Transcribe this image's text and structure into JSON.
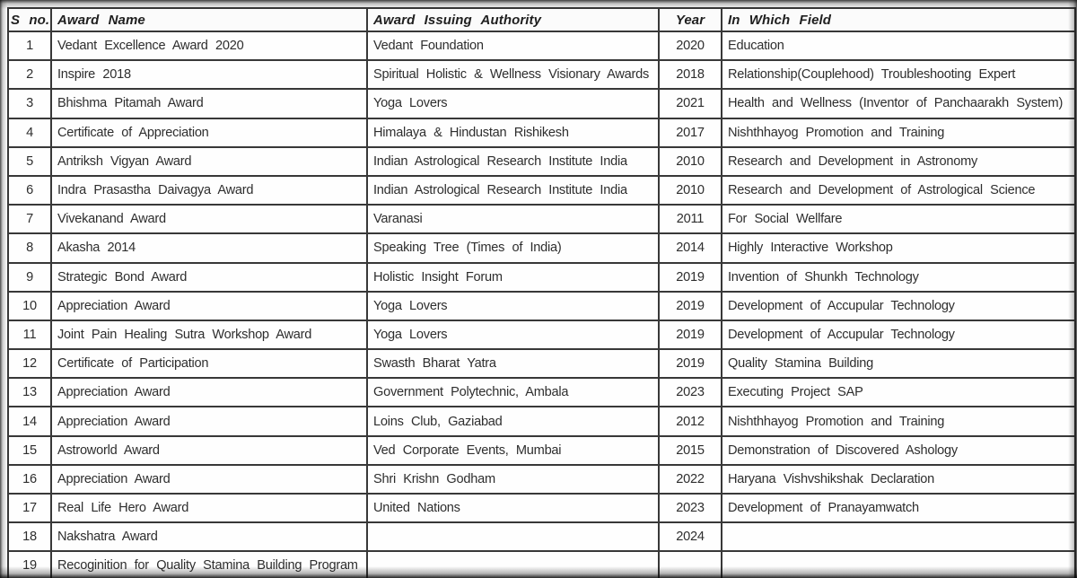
{
  "table": {
    "columns": [
      {
        "key": "sno",
        "label": "S no."
      },
      {
        "key": "name",
        "label": "Award Name"
      },
      {
        "key": "authority",
        "label": "Award Issuing Authority"
      },
      {
        "key": "year",
        "label": "Year"
      },
      {
        "key": "field",
        "label": "In Which Field"
      }
    ],
    "rows": [
      [
        "1",
        "Vedant Excellence Award 2020",
        "Vedant Foundation",
        "2020",
        "Education"
      ],
      [
        "2",
        "Inspire 2018",
        "Spiritual Holistic & Wellness Visionary Awards",
        "2018",
        "Relationship(Couplehood) Troubleshooting Expert"
      ],
      [
        "3",
        "Bhishma Pitamah Award",
        "Yoga Lovers",
        "2021",
        "Health and Wellness (Inventor of Panchaarakh System)"
      ],
      [
        "4",
        "Certificate of Appreciation",
        "Himalaya & Hindustan Rishikesh",
        "2017",
        "Nishthhayog Promotion and Training"
      ],
      [
        "5",
        "Antriksh Vigyan Award",
        "Indian Astrological Research Institute India",
        "2010",
        "Research and Development in Astronomy"
      ],
      [
        "6",
        "Indra Prasastha Daivagya Award",
        "Indian Astrological Research Institute India",
        "2010",
        "Research and Development of Astrological Science"
      ],
      [
        "7",
        "Vivekanand Award",
        "Varanasi",
        "2011",
        "For Social Wellfare"
      ],
      [
        "8",
        "Akasha 2014",
        "Speaking Tree (Times of India)",
        "2014",
        "Highly Interactive Workshop"
      ],
      [
        "9",
        "Strategic Bond Award",
        "Holistic Insight Forum",
        "2019",
        "Invention of Shunkh Technology"
      ],
      [
        "10",
        "Appreciation Award",
        "Yoga Lovers",
        "2019",
        "Development of Accupular Technology"
      ],
      [
        "11",
        "Joint Pain Healing Sutra Workshop Award",
        "Yoga Lovers",
        "2019",
        "Development of Accupular Technology"
      ],
      [
        "12",
        "Certificate of Participation",
        "Swasth Bharat Yatra",
        "2019",
        "Quality Stamina Building"
      ],
      [
        "13",
        "Appreciation Award",
        "Government Polytechnic, Ambala",
        "2023",
        "Executing Project SAP"
      ],
      [
        "14",
        "Appreciation Award",
        "Loins Club, Gaziabad",
        "2012",
        "Nishthhayog Promotion and Training"
      ],
      [
        "15",
        "Astroworld Award",
        "Ved Corporate Events, Mumbai",
        "2015",
        "Demonstration of Discovered Ashology"
      ],
      [
        "16",
        "Appreciation Award",
        "Shri Krishn Godham",
        "2022",
        "Haryana Vishvshikshak Declaration"
      ],
      [
        "17",
        "Real Life Hero Award",
        "United Nations",
        "2023",
        "Development of Pranayamwatch"
      ],
      [
        "18",
        "Nakshatra Award",
        "",
        "2024",
        ""
      ],
      [
        "19",
        "Recoginition for Quality Stamina Building Program",
        "",
        "",
        ""
      ]
    ]
  }
}
